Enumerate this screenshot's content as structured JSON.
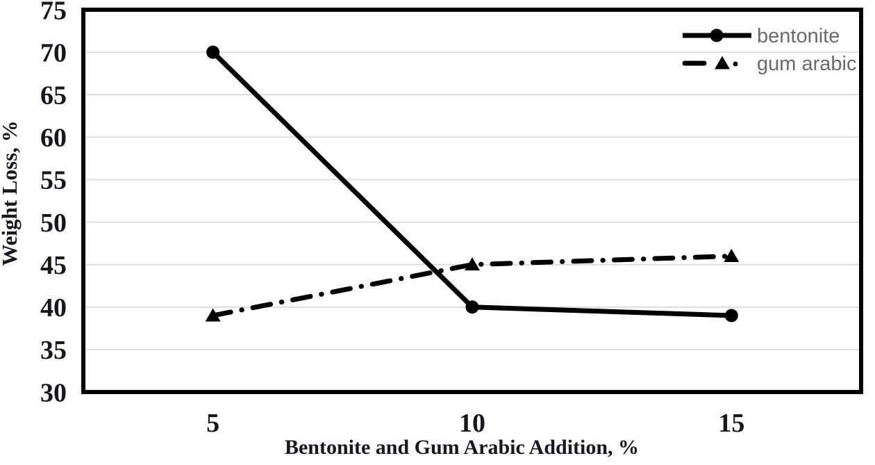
{
  "colors": {
    "background": "#ffffff",
    "series_line": "#000000",
    "plot_frame": "#000000",
    "gridline": "#d7d7d7",
    "tick_label": "#17171f",
    "axis_title": "#17171f",
    "legend_text": "#6a6a6a"
  },
  "chart_data": {
    "type": "line",
    "title": "",
    "xlabel": "Bentonite and Gum Arabic Addition, %",
    "ylabel": "Weight Loss, %",
    "x": [
      5,
      10,
      15
    ],
    "xtick_labels": [
      "5",
      "10",
      "15"
    ],
    "yticks": [
      30,
      35,
      40,
      45,
      50,
      55,
      60,
      65,
      70,
      75
    ],
    "ylim": [
      30,
      75
    ],
    "grid": true,
    "legend_position": "top-right-inside",
    "series": [
      {
        "name": "bentonite",
        "line_style": "solid",
        "marker": "circle",
        "values": [
          70,
          40,
          39
        ]
      },
      {
        "name": "gum arabic",
        "line_style": "dash-dot",
        "marker": "triangle",
        "values": [
          39,
          45,
          46
        ]
      }
    ]
  }
}
